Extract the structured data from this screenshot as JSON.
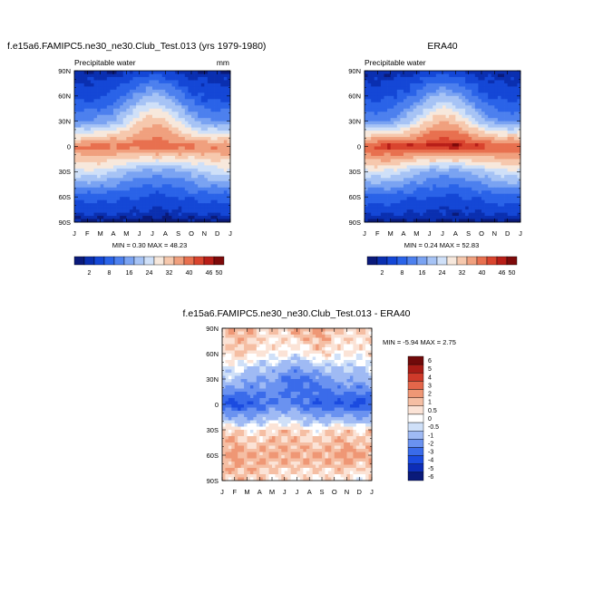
{
  "palettes": {
    "pw": [
      "#0a1a7a",
      "#0a2fb0",
      "#1447d6",
      "#2a63e8",
      "#4d80ee",
      "#7aa3f2",
      "#a6c3f5",
      "#cfe0f8",
      "#f7e8dc",
      "#f6c8ad",
      "#f0a07e",
      "#e8704f",
      "#d9442e",
      "#b81e18",
      "#7e0a0a"
    ],
    "diff": [
      "#0a1a7a",
      "#0d2db8",
      "#1b4be0",
      "#3a6bea",
      "#6a92f0",
      "#9fbaf4",
      "#cfe0f8",
      "#ffffff",
      "#fbe3d6",
      "#f5bea3",
      "#ef9775",
      "#e4664a",
      "#cf3a2a",
      "#a81c16",
      "#700a0a"
    ]
  },
  "panels": [
    {
      "title": "f.e15a6.FAMIPC5.ne30_ne30.Club_Test.013 (yrs 1979-1980)",
      "subtitle_left": "Precipitable water",
      "subtitle_right": "mm",
      "minmax": "MIN =  0.30 MAX =  48.23"
    },
    {
      "title": "ERA40",
      "subtitle_left": "Precipitable water",
      "subtitle_right": "",
      "minmax": "MIN =  0.24 MAX =  52.83"
    },
    {
      "title": "f.e15a6.FAMIPC5.ne30_ne30.Club_Test.013 - ERA40",
      "subtitle_left": "",
      "subtitle_right": "",
      "minmax": "MIN = -5.94 MAX =   2.75"
    }
  ],
  "chart_data": [
    {
      "type": "heatmap",
      "title": "f.e15a6.FAMIPC5.ne30_ne30.Club_Test.013 (yrs 1979-1980)",
      "subtitle": "Precipitable water",
      "units": "mm",
      "x_ticks": [
        "J",
        "F",
        "M",
        "A",
        "M",
        "J",
        "J",
        "A",
        "S",
        "O",
        "N",
        "D",
        "J"
      ],
      "y_ticks": [
        "90N",
        "60N",
        "30N",
        "0",
        "30S",
        "60S",
        "90S"
      ],
      "lat": [
        90,
        60,
        30,
        0,
        -30,
        -60,
        -90
      ],
      "month_index": [
        1,
        2,
        3,
        4,
        5,
        6,
        7,
        8,
        9,
        10,
        11,
        12
      ],
      "z": [
        [
          2,
          2,
          2,
          2,
          3,
          5,
          6,
          5,
          3,
          2,
          2,
          2
        ],
        [
          6,
          6,
          7,
          9,
          13,
          18,
          21,
          19,
          14,
          9,
          7,
          6
        ],
        [
          16,
          16,
          17,
          20,
          26,
          32,
          35,
          33,
          28,
          21,
          17,
          16
        ],
        [
          40,
          42,
          43,
          42,
          41,
          42,
          43,
          43,
          42,
          41,
          40,
          40
        ],
        [
          26,
          27,
          26,
          24,
          21,
          19,
          18,
          18,
          19,
          21,
          24,
          26
        ],
        [
          10,
          10,
          10,
          9,
          8,
          8,
          7,
          7,
          8,
          9,
          10,
          10
        ],
        [
          1,
          1,
          1,
          1,
          1,
          1,
          1,
          1,
          1,
          1,
          1,
          1
        ]
      ],
      "min": 0.3,
      "max": 48.23,
      "colorbar": {
        "labels": [
          "2",
          "8",
          "16",
          "24",
          "32",
          "40",
          "46",
          "50"
        ]
      }
    },
    {
      "type": "heatmap",
      "title": "ERA40",
      "subtitle": "Precipitable water",
      "x_ticks": [
        "J",
        "F",
        "M",
        "A",
        "M",
        "J",
        "J",
        "A",
        "S",
        "O",
        "N",
        "D",
        "J"
      ],
      "y_ticks": [
        "90N",
        "60N",
        "30N",
        "0",
        "30S",
        "60S",
        "90S"
      ],
      "lat": [
        90,
        60,
        30,
        0,
        -30,
        -60,
        -90
      ],
      "month_index": [
        1,
        2,
        3,
        4,
        5,
        6,
        7,
        8,
        9,
        10,
        11,
        12
      ],
      "z": [
        [
          2,
          2,
          2,
          2,
          3,
          5,
          6,
          5,
          3,
          2,
          2,
          2
        ],
        [
          6,
          6,
          7,
          9,
          13,
          18,
          21,
          19,
          14,
          9,
          7,
          6
        ],
        [
          16,
          16,
          17,
          21,
          27,
          33,
          36,
          34,
          29,
          22,
          17,
          16
        ],
        [
          44,
          46,
          47,
          47,
          46,
          47,
          48,
          48,
          47,
          46,
          45,
          44
        ],
        [
          27,
          28,
          27,
          25,
          22,
          19,
          18,
          18,
          20,
          22,
          25,
          27
        ],
        [
          10,
          10,
          10,
          9,
          8,
          8,
          7,
          7,
          8,
          9,
          10,
          10
        ],
        [
          1,
          1,
          1,
          1,
          1,
          1,
          1,
          1,
          1,
          1,
          1,
          1
        ]
      ],
      "min": 0.24,
      "max": 52.83,
      "colorbar": {
        "labels": [
          "2",
          "8",
          "16",
          "24",
          "32",
          "40",
          "46",
          "50"
        ]
      }
    },
    {
      "type": "heatmap",
      "title": "f.e15a6.FAMIPC5.ne30_ne30.Club_Test.013 - ERA40",
      "x_ticks": [
        "J",
        "F",
        "M",
        "A",
        "M",
        "J",
        "J",
        "A",
        "S",
        "O",
        "N",
        "D",
        "J"
      ],
      "y_ticks": [
        "90N",
        "60N",
        "30N",
        "0",
        "30S",
        "60S",
        "90S"
      ],
      "lat": [
        90,
        60,
        30,
        0,
        -30,
        -60,
        -90
      ],
      "month_index": [
        1,
        2,
        3,
        4,
        5,
        6,
        7,
        8,
        9,
        10,
        11,
        12
      ],
      "z": [
        [
          0.5,
          1,
          1,
          0.5,
          0.5,
          0.5,
          1,
          1,
          1.5,
          0.5,
          0.5,
          0.5
        ],
        [
          0,
          0.5,
          0.5,
          0,
          0,
          0,
          -0.5,
          0,
          0.5,
          0,
          0,
          0
        ],
        [
          -1,
          -1,
          -2,
          -2,
          -2,
          -3,
          -3.5,
          -3,
          -2.5,
          -2,
          -1.5,
          -2
        ],
        [
          -4,
          -4.5,
          -4,
          -3.5,
          -3,
          -3,
          -3,
          -3.5,
          -4,
          -4,
          -4,
          -4.5
        ],
        [
          0.5,
          0.5,
          0,
          0,
          0.5,
          0.5,
          0.5,
          0,
          0,
          0.5,
          0.5,
          0
        ],
        [
          1,
          1.5,
          1,
          1,
          1,
          1,
          1,
          1,
          1,
          1,
          1.5,
          1
        ],
        [
          0.5,
          0.5,
          0.5,
          0.5,
          0,
          0,
          0,
          0,
          0,
          0,
          0,
          -0.5
        ]
      ],
      "min": -5.94,
      "max": 2.75,
      "colorbar": {
        "labels": [
          "6",
          "5",
          "4",
          "3",
          "2",
          "1",
          "0.5",
          "0",
          "-0.5",
          "-1",
          "-2",
          "-3",
          "-4",
          "-5",
          "-6"
        ]
      }
    }
  ]
}
